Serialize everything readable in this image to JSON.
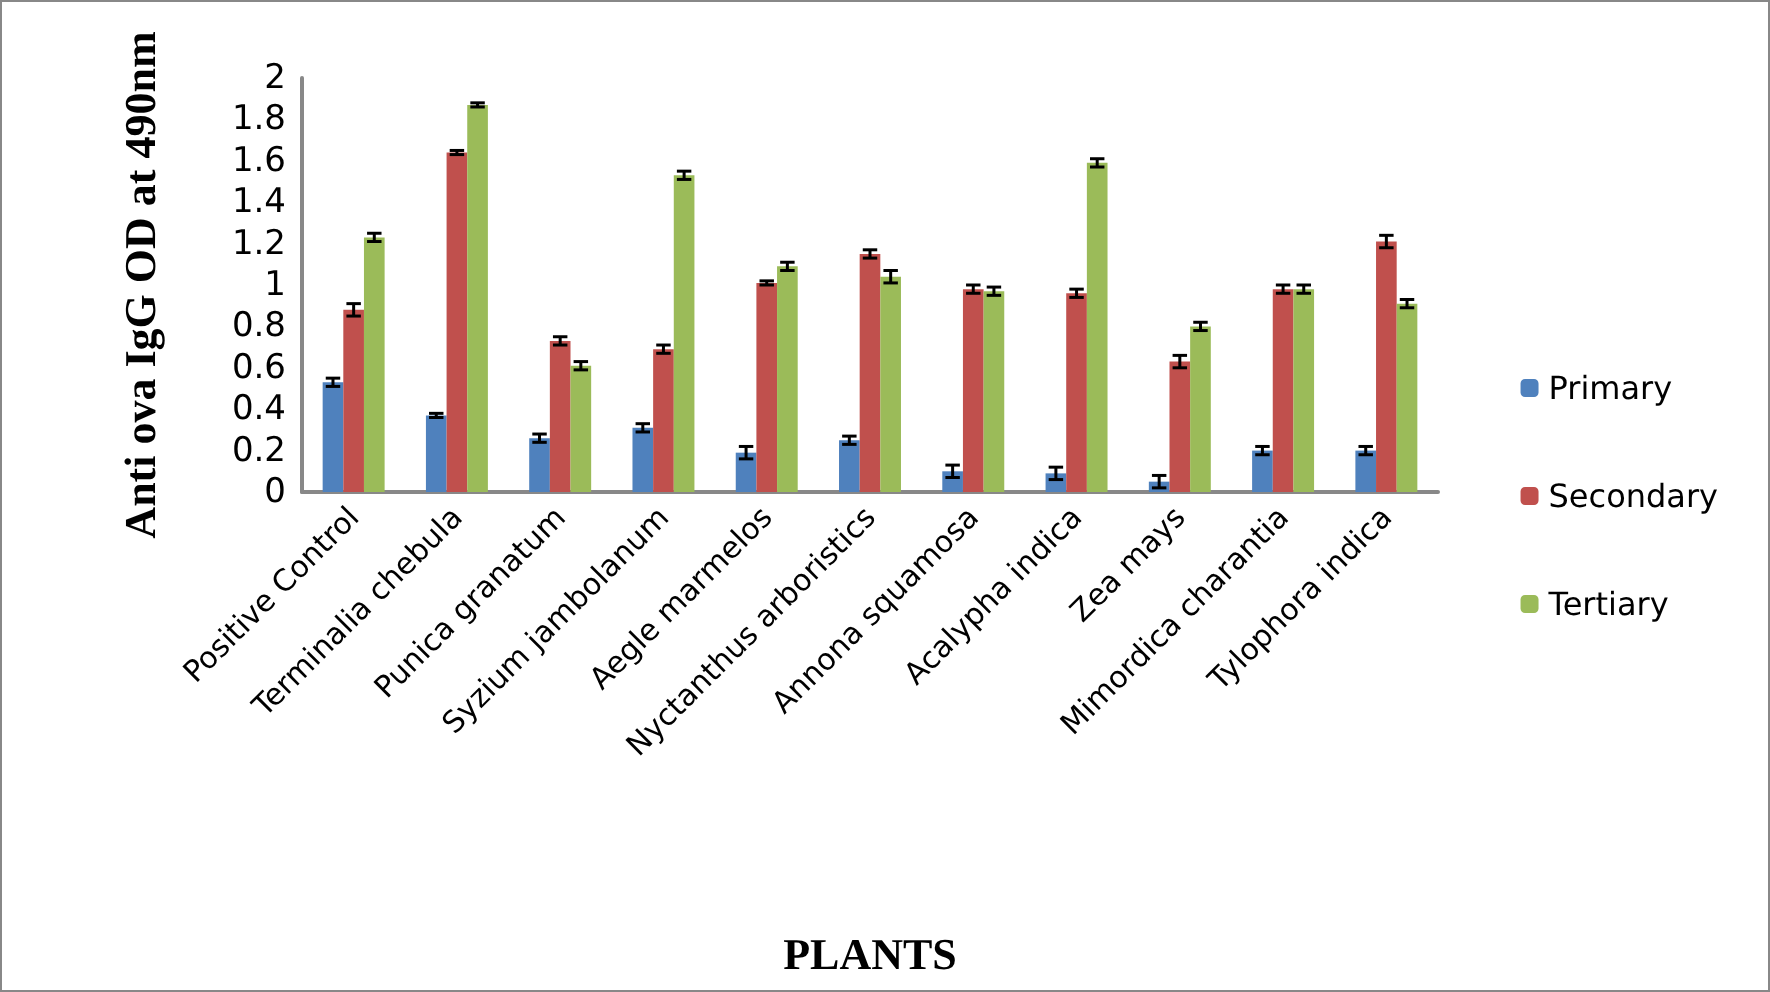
{
  "chart_data": {
    "type": "bar",
    "xlabel": "PLANTS",
    "ylabel": "Anti ova IgG OD at 490nm",
    "categories": [
      "Positive Control",
      "Terminalia chebula",
      "Punica granatum",
      "Syzium jambolanum",
      "Aegle marmelos",
      "Nyctanthus arboristics",
      "Annona squamosa",
      "Acalypha indica",
      "Zea mays",
      "Mimordica charantia",
      "Tylophora indica"
    ],
    "series": [
      {
        "name": "Primary",
        "color": "#4f81bd",
        "values": [
          0.53,
          0.37,
          0.26,
          0.31,
          0.19,
          0.25,
          0.1,
          0.09,
          0.05,
          0.2,
          0.2
        ],
        "errors": [
          0.02,
          0.01,
          0.02,
          0.02,
          0.03,
          0.02,
          0.03,
          0.03,
          0.03,
          0.02,
          0.02
        ]
      },
      {
        "name": "Secondary",
        "color": "#c0504d",
        "values": [
          0.88,
          1.64,
          0.73,
          0.69,
          1.01,
          1.15,
          0.98,
          0.96,
          0.63,
          0.98,
          1.21
        ],
        "errors": [
          0.03,
          0.01,
          0.02,
          0.02,
          0.01,
          0.02,
          0.02,
          0.02,
          0.03,
          0.02,
          0.03
        ]
      },
      {
        "name": "Tertiary",
        "color": "#9bbb59",
        "values": [
          1.23,
          1.87,
          0.61,
          1.53,
          1.09,
          1.04,
          0.97,
          1.59,
          0.8,
          0.98,
          0.91
        ],
        "errors": [
          0.02,
          0.01,
          0.02,
          0.02,
          0.02,
          0.03,
          0.02,
          0.02,
          0.02,
          0.02,
          0.02
        ]
      }
    ],
    "ylim": [
      0,
      2
    ],
    "yticks": [
      0,
      0.2,
      0.4,
      0.6,
      0.8,
      1,
      1.2,
      1.4,
      1.6,
      1.8,
      2
    ],
    "grid": false,
    "legend": "right"
  }
}
